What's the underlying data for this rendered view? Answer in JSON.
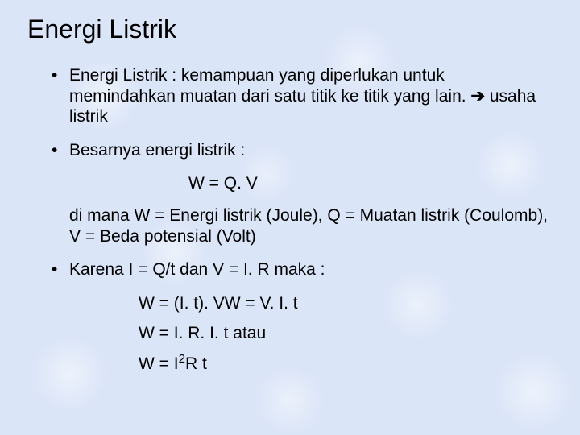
{
  "title": "Energi Listrik",
  "bullets": {
    "b1_pre": "Energi Listrik : kemampuan yang diperlukan untuk memindahkan muatan dari satu titik ke titik yang lain. ",
    "b1_arrow": "➔",
    "b1_post": " usaha listrik",
    "b2": "Besarnya energi listrik :",
    "f1": "W = Q. V",
    "p1": "di mana W = Energi listrik (Joule), Q = Muatan listrik (Coulomb), V = Beda potensial (Volt)",
    "b3": "Karena I = Q/t dan V = I. R maka :",
    "f2": "W = (I. t). VW = V. I. t",
    "f3": "W = I. R. I. t atau",
    "f4_pre": "W = I",
    "f4_sup": "2",
    "f4_post": "R t"
  },
  "colors": {
    "background": "#dbe5f8",
    "text": "#000000"
  },
  "fonts": {
    "family": "Comic Sans MS",
    "title_size_pt": 32,
    "body_size_pt": 21
  }
}
